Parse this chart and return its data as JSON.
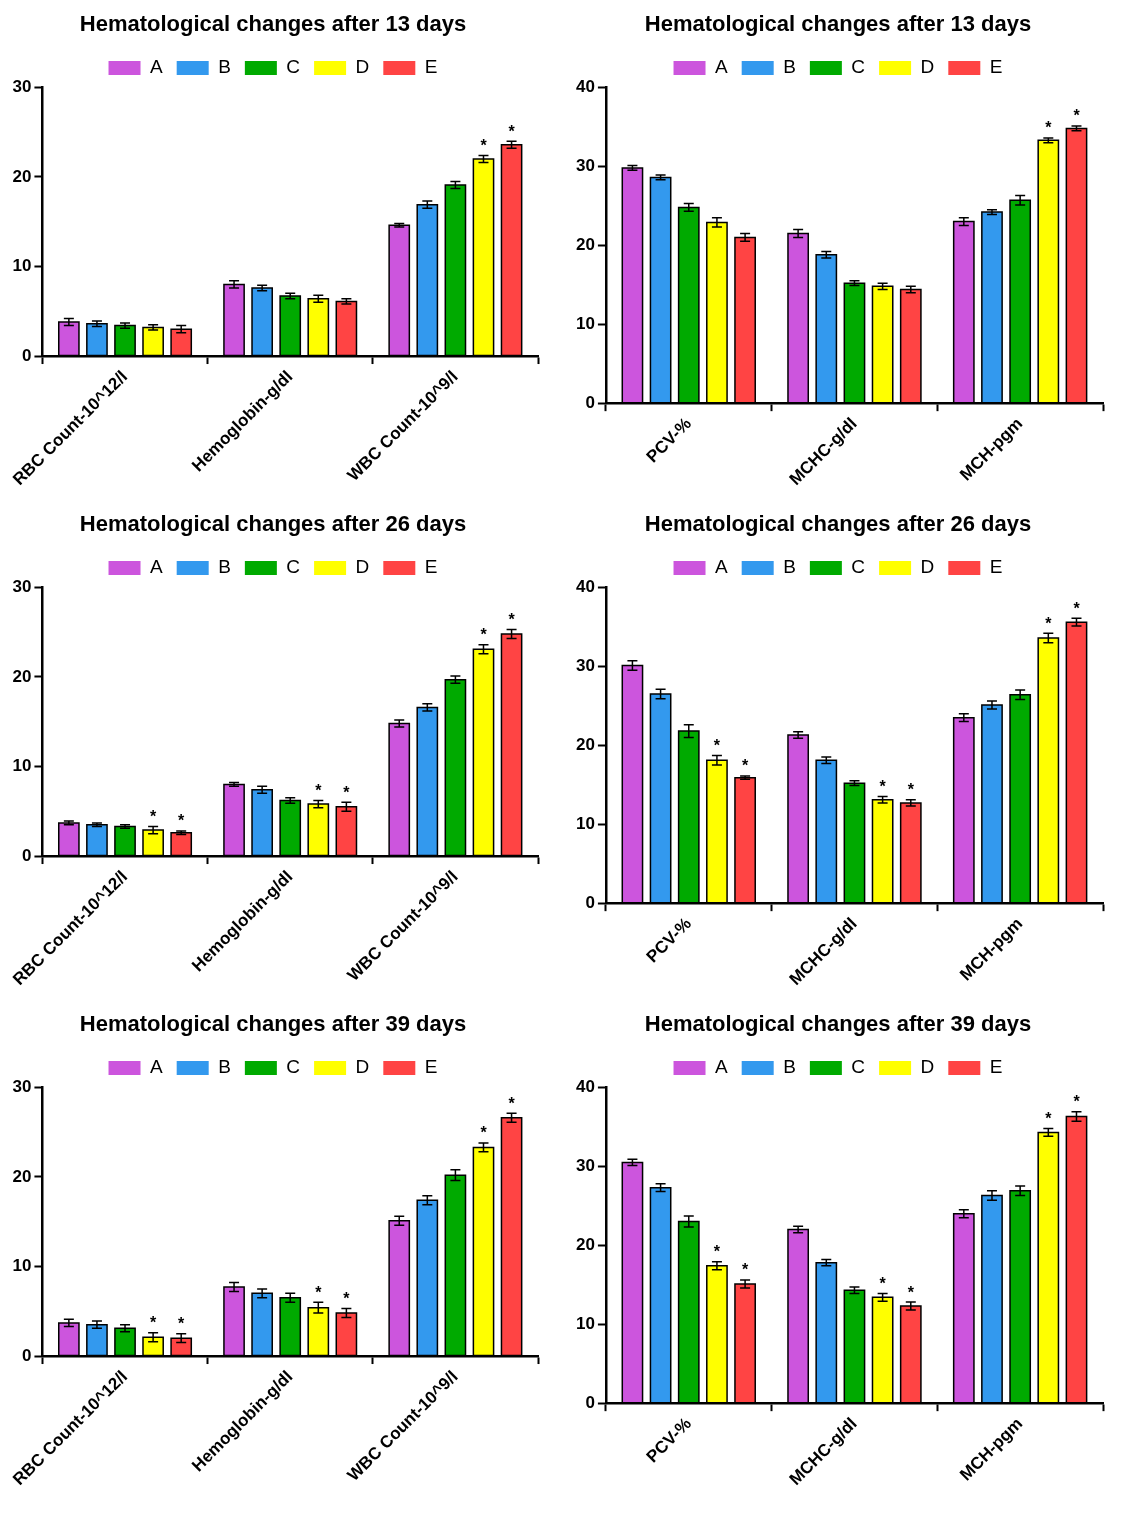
{
  "chart_data": [
    {
      "type": "bar",
      "title": "Hematological changes after 13 days",
      "categories": [
        "RBC Count-10^12/l",
        "Hemoglobin-g/dl",
        "WBC Count-10^9/l"
      ],
      "ylim": [
        0,
        30
      ],
      "yticks": [
        0,
        10,
        20,
        30
      ],
      "legend": "top",
      "series": [
        {
          "name": "A",
          "color": "#cc55dd",
          "values": [
            3.8,
            8.0,
            14.6
          ],
          "errors": [
            0.4,
            0.4,
            0.2
          ]
        },
        {
          "name": "B",
          "color": "#3399ee",
          "values": [
            3.6,
            7.6,
            16.9
          ],
          "errors": [
            0.3,
            0.3,
            0.4
          ]
        },
        {
          "name": "C",
          "color": "#00aa00",
          "values": [
            3.4,
            6.7,
            19.1
          ],
          "errors": [
            0.3,
            0.3,
            0.4
          ],
          "value_labels": [
            null,
            null,
            null
          ]
        },
        {
          "name": "D",
          "color": "#ffff00",
          "values": [
            3.2,
            6.4,
            22.0
          ],
          "errors": [
            0.3,
            0.4,
            0.4
          ],
          "value_labels": [
            null,
            null,
            "*"
          ]
        },
        {
          "name": "E",
          "color": "#ff4444",
          "values": [
            3.0,
            6.1,
            23.6
          ],
          "errors": [
            0.4,
            0.3,
            0.4
          ],
          "value_labels": [
            null,
            null,
            "*"
          ]
        }
      ]
    },
    {
      "type": "bar",
      "title": "Hematological changes after 13 days",
      "categories": [
        "PCV-%",
        "MCHC-g/dl",
        "MCH-pgm"
      ],
      "ylim": [
        0,
        40
      ],
      "yticks": [
        0,
        10,
        20,
        30,
        40
      ],
      "legend": "top",
      "series": [
        {
          "name": "A",
          "color": "#cc55dd",
          "values": [
            29.8,
            21.5,
            23.0
          ],
          "errors": [
            0.3,
            0.5,
            0.5
          ]
        },
        {
          "name": "B",
          "color": "#3399ee",
          "values": [
            28.6,
            18.8,
            24.2
          ],
          "errors": [
            0.3,
            0.4,
            0.3
          ]
        },
        {
          "name": "C",
          "color": "#00aa00",
          "values": [
            24.8,
            15.2,
            25.7
          ],
          "errors": [
            0.5,
            0.3,
            0.6
          ]
        },
        {
          "name": "D",
          "color": "#ffff00",
          "values": [
            22.9,
            14.8,
            33.3
          ],
          "errors": [
            0.6,
            0.4,
            0.3
          ],
          "value_labels": [
            null,
            null,
            "*"
          ]
        },
        {
          "name": "E",
          "color": "#ff4444",
          "values": [
            21.0,
            14.4,
            34.8
          ],
          "errors": [
            0.5,
            0.4,
            0.3
          ],
          "value_labels": [
            null,
            null,
            "*"
          ]
        }
      ]
    },
    {
      "type": "bar",
      "title": "Hematological changes after 26 days",
      "categories": [
        "RBC Count-10^12/l",
        "Hemoglobin-g/dl",
        "WBC Count-10^9/l"
      ],
      "ylim": [
        0,
        30
      ],
      "yticks": [
        0,
        10,
        20,
        30
      ],
      "legend": "top",
      "series": [
        {
          "name": "A",
          "color": "#cc55dd",
          "values": [
            3.7,
            8.0,
            14.8
          ],
          "errors": [
            0.2,
            0.2,
            0.4
          ]
        },
        {
          "name": "B",
          "color": "#3399ee",
          "values": [
            3.5,
            7.4,
            16.6
          ],
          "errors": [
            0.2,
            0.4,
            0.4
          ]
        },
        {
          "name": "C",
          "color": "#00aa00",
          "values": [
            3.3,
            6.2,
            19.7
          ],
          "errors": [
            0.2,
            0.3,
            0.4
          ]
        },
        {
          "name": "D",
          "color": "#ffff00",
          "values": [
            2.9,
            5.8,
            23.1
          ],
          "errors": [
            0.4,
            0.4,
            0.5
          ],
          "value_labels": [
            "*",
            "*",
            "*"
          ]
        },
        {
          "name": "E",
          "color": "#ff4444",
          "values": [
            2.6,
            5.5,
            24.8
          ],
          "errors": [
            0.2,
            0.5,
            0.5
          ],
          "value_labels": [
            "*",
            "*",
            "*"
          ]
        }
      ]
    },
    {
      "type": "bar",
      "title": "Hematological changes after 26 days",
      "categories": [
        "PCV-%",
        "MCHC-g/dl",
        "MCH-pgm"
      ],
      "ylim": [
        0,
        40
      ],
      "yticks": [
        0,
        10,
        20,
        30,
        40
      ],
      "legend": "top",
      "series": [
        {
          "name": "A",
          "color": "#cc55dd",
          "values": [
            30.1,
            21.3,
            23.5
          ],
          "errors": [
            0.6,
            0.4,
            0.5
          ]
        },
        {
          "name": "B",
          "color": "#3399ee",
          "values": [
            26.5,
            18.1,
            25.1
          ],
          "errors": [
            0.6,
            0.4,
            0.5
          ]
        },
        {
          "name": "C",
          "color": "#00aa00",
          "values": [
            21.8,
            15.2,
            26.4
          ],
          "errors": [
            0.8,
            0.3,
            0.6
          ]
        },
        {
          "name": "D",
          "color": "#ffff00",
          "values": [
            18.1,
            13.1,
            33.6
          ],
          "errors": [
            0.6,
            0.4,
            0.6
          ],
          "value_labels": [
            "*",
            "*",
            "*"
          ]
        },
        {
          "name": "E",
          "color": "#ff4444",
          "values": [
            15.9,
            12.7,
            35.6
          ],
          "errors": [
            0.2,
            0.4,
            0.5
          ],
          "value_labels": [
            "*",
            "*",
            "*"
          ]
        }
      ]
    },
    {
      "type": "bar",
      "title": "Hematological changes after 39 days",
      "categories": [
        "RBC Count-10^12/l",
        "Hemoglobin-g/dl",
        "WBC Count-10^9/l"
      ],
      "ylim": [
        0,
        30
      ],
      "yticks": [
        0,
        10,
        20,
        30
      ],
      "legend": "top",
      "series": [
        {
          "name": "A",
          "color": "#cc55dd",
          "values": [
            3.7,
            7.7,
            15.1
          ],
          "errors": [
            0.4,
            0.5,
            0.5
          ]
        },
        {
          "name": "B",
          "color": "#3399ee",
          "values": [
            3.5,
            7.0,
            17.4
          ],
          "errors": [
            0.4,
            0.5,
            0.5
          ]
        },
        {
          "name": "C",
          "color": "#00aa00",
          "values": [
            3.1,
            6.5,
            20.2
          ],
          "errors": [
            0.4,
            0.5,
            0.6
          ]
        },
        {
          "name": "D",
          "color": "#ffff00",
          "values": [
            2.1,
            5.4,
            23.3
          ],
          "errors": [
            0.5,
            0.6,
            0.5
          ],
          "value_labels": [
            "*",
            "*",
            "*"
          ]
        },
        {
          "name": "E",
          "color": "#ff4444",
          "values": [
            2.0,
            4.8,
            26.6
          ],
          "errors": [
            0.5,
            0.5,
            0.5
          ],
          "value_labels": [
            "*",
            "*",
            "*"
          ]
        }
      ]
    },
    {
      "type": "bar",
      "title": "Hematological changes after 39 days",
      "categories": [
        "PCV-%",
        "MCHC-g/dl",
        "MCH-pgm"
      ],
      "ylim": [
        0,
        40
      ],
      "yticks": [
        0,
        10,
        20,
        30,
        40
      ],
      "legend": "top",
      "series": [
        {
          "name": "A",
          "color": "#cc55dd",
          "values": [
            30.5,
            22.0,
            24.0
          ],
          "errors": [
            0.4,
            0.4,
            0.5
          ]
        },
        {
          "name": "B",
          "color": "#3399ee",
          "values": [
            27.3,
            17.8,
            26.3
          ],
          "errors": [
            0.5,
            0.4,
            0.6
          ]
        },
        {
          "name": "C",
          "color": "#00aa00",
          "values": [
            23.0,
            14.3,
            26.9
          ],
          "errors": [
            0.7,
            0.4,
            0.6
          ]
        },
        {
          "name": "D",
          "color": "#ffff00",
          "values": [
            17.4,
            13.4,
            34.3
          ],
          "errors": [
            0.5,
            0.5,
            0.5
          ],
          "value_labels": [
            "*",
            "*",
            "*"
          ]
        },
        {
          "name": "E",
          "color": "#ff4444",
          "values": [
            15.1,
            12.3,
            36.3
          ],
          "errors": [
            0.5,
            0.5,
            0.6
          ],
          "value_labels": [
            "*",
            "*",
            "*"
          ]
        }
      ]
    }
  ]
}
